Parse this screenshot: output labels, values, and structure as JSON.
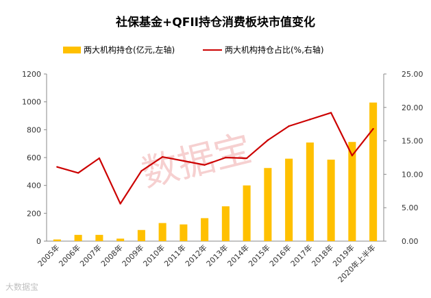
{
  "chart_data": {
    "type": "bar",
    "title": "社保基金+QFII持仓消费板块市值变化",
    "categories": [
      "2005年",
      "2006年",
      "2007年",
      "2008年",
      "2009年",
      "2010年",
      "2011年",
      "2012年",
      "2013年",
      "2014年",
      "2015年",
      "2016年",
      "2017年",
      "2018年",
      "2019年",
      "2020年上半年"
    ],
    "series": [
      {
        "name": "两大机构持仓(亿元,左轴)",
        "type": "bar",
        "axis": "left",
        "color": "#FFC000",
        "values": [
          12,
          45,
          45,
          18,
          80,
          130,
          120,
          165,
          250,
          400,
          525,
          592,
          708,
          585,
          712,
          995
        ]
      },
      {
        "name": "两大机构持仓占比(%,右轴)",
        "type": "line",
        "axis": "right",
        "color": "#CC0000",
        "values": [
          11.1,
          10.2,
          12.4,
          5.6,
          10.5,
          12.6,
          12.0,
          11.4,
          12.5,
          12.4,
          15.1,
          17.2,
          18.2,
          19.2,
          12.8,
          16.8
        ]
      }
    ],
    "y_left": {
      "min": 0,
      "max": 1200,
      "ticks": [
        "0",
        "200",
        "400",
        "600",
        "800",
        "1000",
        "1200"
      ]
    },
    "y_right": {
      "min": 0,
      "max": 25,
      "ticks": [
        "0.00",
        "5.00",
        "10.00",
        "15.00",
        "20.00",
        "25.00"
      ]
    },
    "grid": false,
    "legend": "top"
  },
  "watermark": "数据宝",
  "logo_text": "大数据宝"
}
